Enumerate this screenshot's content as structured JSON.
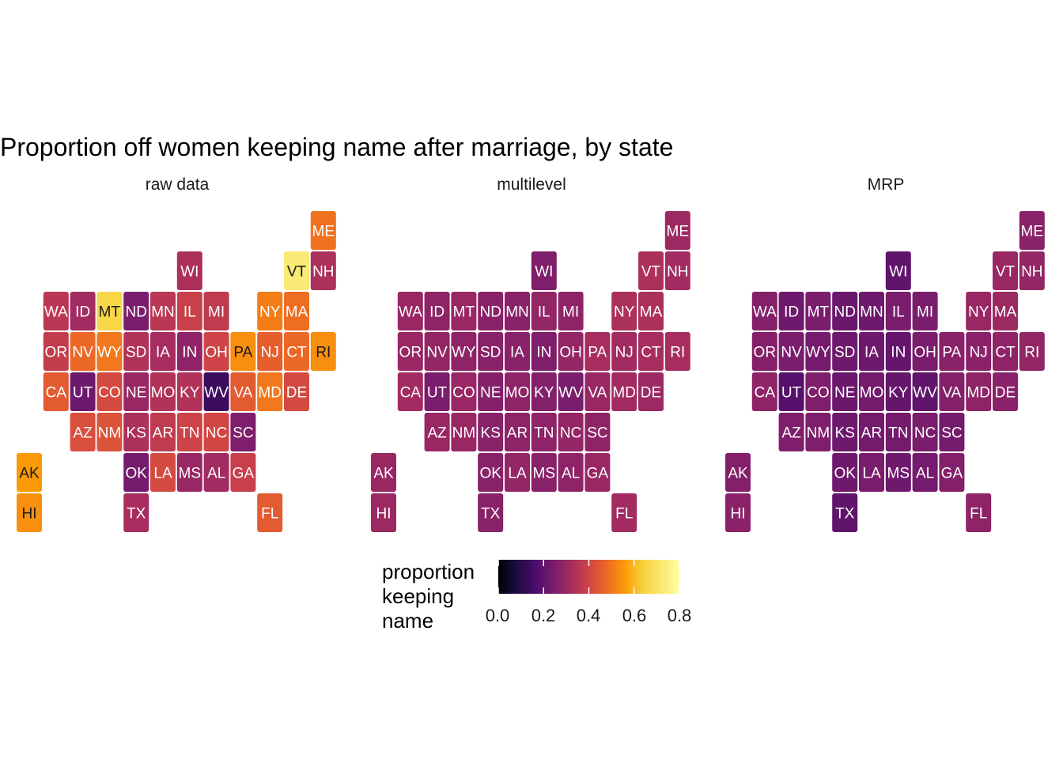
{
  "chart_data": {
    "type": "heatmap",
    "title": "Proportion off women keeping name after marriage, by state",
    "facets": [
      "raw data",
      "multilevel",
      "MRP"
    ],
    "legend": {
      "title": [
        "proportion",
        "keeping",
        "name"
      ],
      "ticks": [
        "0.0",
        "0.2",
        "0.4",
        "0.6",
        "0.8"
      ],
      "range": [
        0,
        0.8
      ],
      "palette": "inferno"
    },
    "states": [
      {
        "abbr": "ME",
        "col": 11,
        "row": 0,
        "values": [
          0.55,
          0.34,
          0.3
        ]
      },
      {
        "abbr": "WI",
        "col": 6,
        "row": 1,
        "values": [
          0.37,
          0.28,
          0.22
        ]
      },
      {
        "abbr": "VT",
        "col": 10,
        "row": 1,
        "values": [
          0.76,
          0.37,
          0.33
        ]
      },
      {
        "abbr": "NH",
        "col": 11,
        "row": 1,
        "values": [
          0.37,
          0.35,
          0.32
        ]
      },
      {
        "abbr": "WA",
        "col": 1,
        "row": 2,
        "values": [
          0.4,
          0.33,
          0.29
        ]
      },
      {
        "abbr": "ID",
        "col": 2,
        "row": 2,
        "values": [
          0.35,
          0.31,
          0.25
        ]
      },
      {
        "abbr": "MT",
        "col": 3,
        "row": 2,
        "values": [
          0.72,
          0.33,
          0.27
        ]
      },
      {
        "abbr": "ND",
        "col": 4,
        "row": 2,
        "values": [
          0.27,
          0.3,
          0.24
        ]
      },
      {
        "abbr": "MN",
        "col": 5,
        "row": 2,
        "values": [
          0.4,
          0.3,
          0.25
        ]
      },
      {
        "abbr": "IL",
        "col": 6,
        "row": 2,
        "values": [
          0.43,
          0.32,
          0.27
        ]
      },
      {
        "abbr": "MI",
        "col": 7,
        "row": 2,
        "values": [
          0.41,
          0.31,
          0.27
        ]
      },
      {
        "abbr": "NY",
        "col": 9,
        "row": 2,
        "values": [
          0.57,
          0.37,
          0.33
        ]
      },
      {
        "abbr": "MA",
        "col": 10,
        "row": 2,
        "values": [
          0.54,
          0.37,
          0.34
        ]
      },
      {
        "abbr": "OR",
        "col": 1,
        "row": 3,
        "values": [
          0.42,
          0.33,
          0.29
        ]
      },
      {
        "abbr": "NV",
        "col": 2,
        "row": 3,
        "values": [
          0.53,
          0.32,
          0.27
        ]
      },
      {
        "abbr": "WY",
        "col": 3,
        "row": 3,
        "values": [
          0.56,
          0.31,
          0.26
        ]
      },
      {
        "abbr": "SD",
        "col": 4,
        "row": 3,
        "values": [
          0.38,
          0.3,
          0.25
        ]
      },
      {
        "abbr": "IA",
        "col": 5,
        "row": 3,
        "values": [
          0.36,
          0.3,
          0.25
        ]
      },
      {
        "abbr": "IN",
        "col": 6,
        "row": 3,
        "values": [
          0.31,
          0.28,
          0.23
        ]
      },
      {
        "abbr": "OH",
        "col": 7,
        "row": 3,
        "values": [
          0.44,
          0.32,
          0.27
        ]
      },
      {
        "abbr": "PA",
        "col": 8,
        "row": 3,
        "values": [
          0.6,
          0.36,
          0.3
        ]
      },
      {
        "abbr": "NJ",
        "col": 9,
        "row": 3,
        "values": [
          0.51,
          0.35,
          0.3
        ]
      },
      {
        "abbr": "CT",
        "col": 10,
        "row": 3,
        "values": [
          0.53,
          0.36,
          0.31
        ]
      },
      {
        "abbr": "RI",
        "col": 11,
        "row": 3,
        "values": [
          0.6,
          0.36,
          0.32
        ]
      },
      {
        "abbr": "CA",
        "col": 1,
        "row": 4,
        "values": [
          0.5,
          0.35,
          0.31
        ]
      },
      {
        "abbr": "UT",
        "col": 2,
        "row": 4,
        "values": [
          0.25,
          0.27,
          0.2
        ]
      },
      {
        "abbr": "CO",
        "col": 3,
        "row": 4,
        "values": [
          0.46,
          0.33,
          0.28
        ]
      },
      {
        "abbr": "NE",
        "col": 4,
        "row": 4,
        "values": [
          0.33,
          0.29,
          0.24
        ]
      },
      {
        "abbr": "MO",
        "col": 5,
        "row": 4,
        "values": [
          0.38,
          0.31,
          0.26
        ]
      },
      {
        "abbr": "KY",
        "col": 6,
        "row": 4,
        "values": [
          0.38,
          0.29,
          0.23
        ]
      },
      {
        "abbr": "WV",
        "col": 7,
        "row": 4,
        "values": [
          0.15,
          0.27,
          0.22
        ]
      },
      {
        "abbr": "VA",
        "col": 8,
        "row": 4,
        "values": [
          0.5,
          0.33,
          0.29
        ]
      },
      {
        "abbr": "MD",
        "col": 9,
        "row": 4,
        "values": [
          0.56,
          0.35,
          0.31
        ]
      },
      {
        "abbr": "DE",
        "col": 10,
        "row": 4,
        "values": [
          0.46,
          0.34,
          0.3
        ]
      },
      {
        "abbr": "AZ",
        "col": 2,
        "row": 5,
        "values": [
          0.47,
          0.33,
          0.28
        ]
      },
      {
        "abbr": "NM",
        "col": 3,
        "row": 5,
        "values": [
          0.48,
          0.33,
          0.28
        ]
      },
      {
        "abbr": "KS",
        "col": 4,
        "row": 5,
        "values": [
          0.37,
          0.3,
          0.25
        ]
      },
      {
        "abbr": "AR",
        "col": 5,
        "row": 5,
        "values": [
          0.41,
          0.31,
          0.26
        ]
      },
      {
        "abbr": "TN",
        "col": 6,
        "row": 5,
        "values": [
          0.44,
          0.31,
          0.26
        ]
      },
      {
        "abbr": "NC",
        "col": 7,
        "row": 5,
        "values": [
          0.45,
          0.32,
          0.27
        ]
      },
      {
        "abbr": "SC",
        "col": 8,
        "row": 5,
        "values": [
          0.28,
          0.31,
          0.26
        ]
      },
      {
        "abbr": "AK",
        "col": 0,
        "row": 6,
        "values": [
          0.62,
          0.33,
          0.29
        ]
      },
      {
        "abbr": "OK",
        "col": 4,
        "row": 6,
        "values": [
          0.26,
          0.3,
          0.25
        ]
      },
      {
        "abbr": "LA",
        "col": 5,
        "row": 6,
        "values": [
          0.46,
          0.32,
          0.27
        ]
      },
      {
        "abbr": "MS",
        "col": 6,
        "row": 6,
        "values": [
          0.33,
          0.3,
          0.25
        ]
      },
      {
        "abbr": "AL",
        "col": 7,
        "row": 6,
        "values": [
          0.35,
          0.31,
          0.26
        ]
      },
      {
        "abbr": "GA",
        "col": 8,
        "row": 6,
        "values": [
          0.43,
          0.33,
          0.29
        ]
      },
      {
        "abbr": "HI",
        "col": 0,
        "row": 7,
        "values": [
          0.6,
          0.34,
          0.3
        ]
      },
      {
        "abbr": "TX",
        "col": 4,
        "row": 7,
        "values": [
          0.36,
          0.3,
          0.22
        ]
      },
      {
        "abbr": "FL",
        "col": 9,
        "row": 7,
        "values": [
          0.5,
          0.35,
          0.31
        ]
      }
    ]
  }
}
